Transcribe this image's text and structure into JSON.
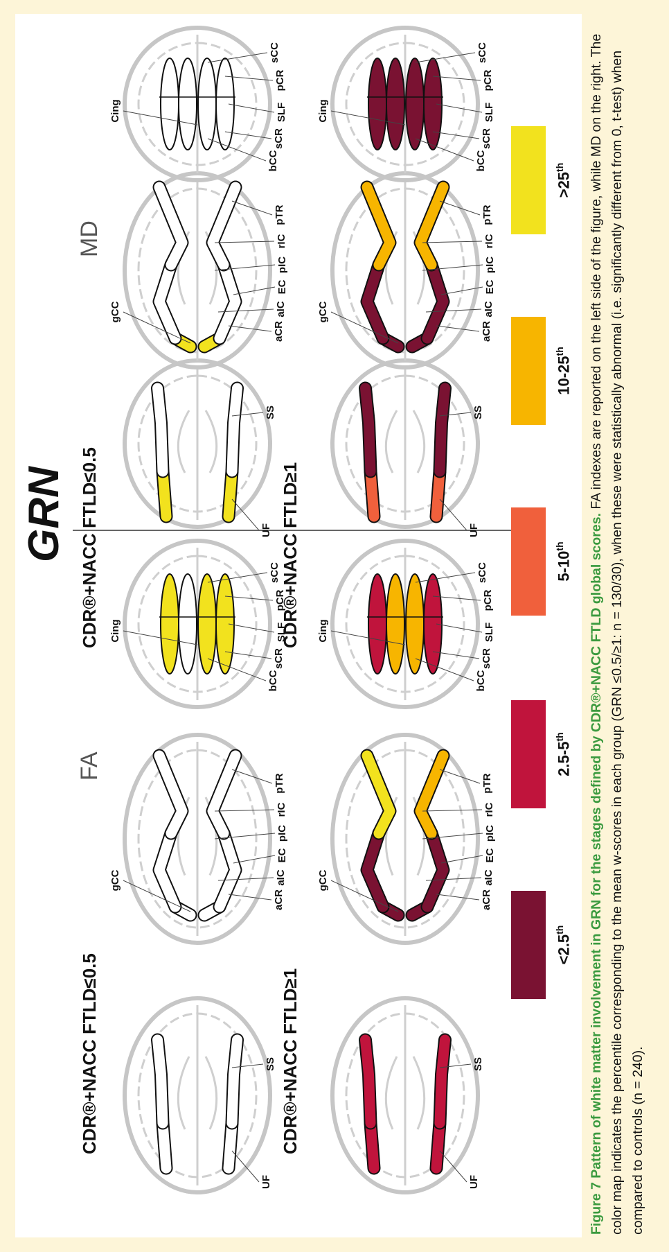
{
  "title": "GRN",
  "column_headers": {
    "fa": "FA",
    "md": "MD"
  },
  "rows": [
    {
      "fa_label": "CDR®+NACC FTLD≤0.5",
      "md_label": "CDR®+NACC FTLD≤0.5"
    },
    {
      "fa_label": "CDR®+NACC FTLD≥1",
      "md_label": "CDR®+NACC FTLD≥1"
    }
  ],
  "panels": [
    {
      "labels": [
        "UF",
        "SS"
      ],
      "fills": [
        "#ffffff",
        "#ffffff"
      ]
    },
    {
      "labels": [
        "gCC",
        "aCR",
        "aIC",
        "EC",
        "pIC",
        "rIC",
        "pTR"
      ],
      "fills": [
        "#ffffff",
        "#ffffff",
        "#ffffff",
        "#ffffff",
        "#ffffff",
        "#ffffff"
      ]
    },
    {
      "labels": [
        "Cing",
        "bCC",
        "sCR",
        "SLF",
        "pCR",
        "sCC"
      ],
      "fills": [
        "#f2e21e",
        "#ffffff",
        "#f2e21e",
        "#f2e21e"
      ]
    },
    {
      "labels": [
        "UF",
        "SS"
      ],
      "fills": [
        "#f2e21e",
        "#ffffff"
      ]
    },
    {
      "labels": [
        "gCC",
        "aCR",
        "aIC",
        "EC",
        "pIC",
        "rIC",
        "pTR"
      ],
      "fills": [
        "#f2e21e",
        "#f2e21e",
        "#ffffff",
        "#ffffff",
        "#ffffff",
        "#ffffff"
      ]
    },
    {
      "labels": [
        "Cing",
        "bCC",
        "sCR",
        "SLF",
        "pCR",
        "sCC"
      ],
      "fills": [
        "#ffffff",
        "#ffffff",
        "#ffffff",
        "#ffffff"
      ]
    },
    {
      "labels": [
        "UF",
        "SS"
      ],
      "fills": [
        "#c0143c",
        "#c0143c"
      ]
    },
    {
      "labels": [
        "gCC",
        "aCR",
        "aIC",
        "EC",
        "pIC",
        "rIC",
        "pTR"
      ],
      "fills": [
        "#7a1232",
        "#7a1232",
        "#7a1232",
        "#7a1232",
        "#f2e21e",
        "#f7b500"
      ]
    },
    {
      "labels": [
        "Cing",
        "bCC",
        "sCR",
        "SLF",
        "pCR",
        "sCC"
      ],
      "fills": [
        "#c0143c",
        "#f7b500",
        "#f7b500",
        "#c0143c"
      ]
    },
    {
      "labels": [
        "UF",
        "SS"
      ],
      "fills": [
        "#f0603c",
        "#7a1232"
      ]
    },
    {
      "labels": [
        "gCC",
        "aCR",
        "aIC",
        "EC",
        "pIC",
        "rIC",
        "pTR"
      ],
      "fills": [
        "#7a1232",
        "#7a1232",
        "#7a1232",
        "#7a1232",
        "#f7b500",
        "#f7b500"
      ]
    },
    {
      "labels": [
        "Cing",
        "bCC",
        "sCR",
        "SLF",
        "pCR",
        "sCC"
      ],
      "fills": [
        "#7a1232",
        "#7a1232",
        "#7a1232",
        "#7a1232"
      ]
    }
  ],
  "legend": [
    {
      "value": "<2.5",
      "sup": "th",
      "color": "#7a1232"
    },
    {
      "value": "2.5-5",
      "sup": "th",
      "color": "#c0143c"
    },
    {
      "value": "5-10",
      "sup": "th",
      "color": "#f0603c"
    },
    {
      "value": "10-25",
      "sup": "th",
      "color": "#f7b500"
    },
    {
      "value": ">25",
      "sup": "th",
      "color": "#f2e21e"
    }
  ],
  "caption": {
    "label": "Figure 7",
    "title": "Pattern of white matter involvement in GRN for the stages defined by CDR®+NACC FTLD global scores.",
    "text": "FA indexes are reported on the left side of the figure, while MD on the right. The color map indicates the percentile corresponding to the mean w-scores in each group (GRN ≤0.5/≥1: n = 130/30), when these were statistically abnormal (i.e. significantly different from 0, t-test) when compared to controls (n = 240)."
  }
}
